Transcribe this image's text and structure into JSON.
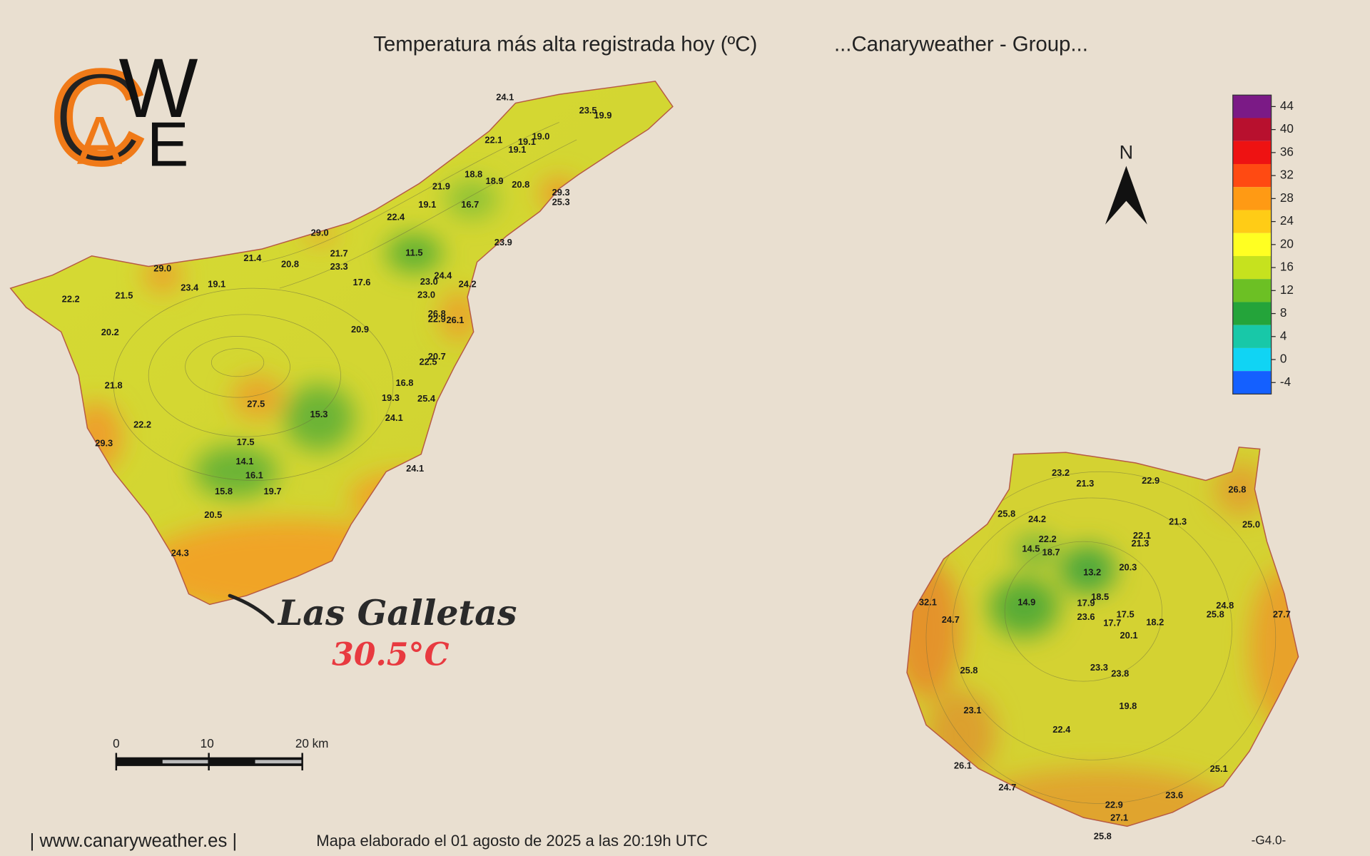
{
  "title": "Temperatura más alta registrada hoy (ºC)",
  "subtitle": "...Canaryweather - Group...",
  "logo": [
    "C",
    "A",
    "W",
    "E"
  ],
  "north": "N",
  "legend": {
    "ticks": [
      44,
      40,
      36,
      32,
      28,
      24,
      20,
      16,
      12,
      8,
      4,
      0,
      -4
    ],
    "colors": [
      "#7b1a86",
      "#b8102e",
      "#ee1212",
      "#ff4a12",
      "#ff9a14",
      "#ffcc16",
      "#ffff22",
      "#c6e21e",
      "#6cc024",
      "#24a43a",
      "#18c8a8",
      "#10d4f4",
      "#1460ff"
    ]
  },
  "tenerife": {
    "stations": [
      "24.1",
      "23.5",
      "19.9",
      "22.1",
      "19.1",
      "19.0",
      "19.1",
      "18.8",
      "18.9",
      "20.8",
      "21.9",
      "29.3",
      "25.3",
      "19.1",
      "16.7",
      "22.4",
      "29.0",
      "23.9",
      "11.5",
      "21.4",
      "20.8",
      "21.7",
      "23.3",
      "29.0",
      "24.4",
      "23.0",
      "24.2",
      "23.4",
      "19.1",
      "17.6",
      "23.0",
      "22.2",
      "21.5",
      "26.8",
      "22.9",
      "26.1",
      "20.2",
      "20.9",
      "20.7",
      "22.5",
      "21.8",
      "16.8",
      "19.3",
      "25.4",
      "27.5",
      "15.3",
      "24.1",
      "22.2",
      "29.3",
      "17.5",
      "14.1",
      "24.1",
      "16.1",
      "15.8",
      "19.7",
      "20.5",
      "24.3"
    ]
  },
  "gran_canaria": {
    "stations": [
      "23.2",
      "21.3",
      "22.9",
      "26.8",
      "25.8",
      "24.2",
      "21.3",
      "25.0",
      "22.2",
      "22.1",
      "21.3",
      "14.5",
      "18.7",
      "20.3",
      "13.2",
      "18.5",
      "32.1",
      "14.9",
      "17.9",
      "24.8",
      "17.5",
      "25.8",
      "27.7",
      "24.7",
      "23.6",
      "17.7",
      "18.2",
      "20.1",
      "23.3",
      "25.8",
      "23.8",
      "19.8",
      "23.1",
      "22.4",
      "26.1",
      "25.1",
      "24.7",
      "23.6",
      "22.9",
      "27.1",
      "25.8"
    ]
  },
  "highlight": {
    "place": "Las Galletas",
    "value": "30.5°C"
  },
  "scale_bar": {
    "labels": [
      "0",
      "10",
      "20 km"
    ]
  },
  "footer": {
    "site": "| www.canaryweather.es |",
    "made": "Mapa elaborado el 01 agosto de 2025 a las 20:19h UTC",
    "version": "-G4.0-"
  }
}
